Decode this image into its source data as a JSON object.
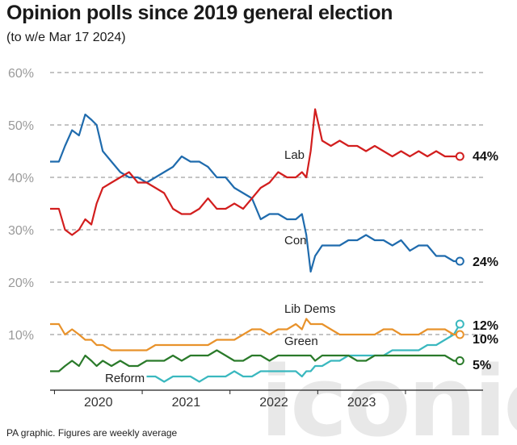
{
  "header": {
    "title": "Opinion polls since 2019 general election",
    "subtitle": "(to w/e Mar 17 2024)"
  },
  "footnote": "PA graphic. Figures are weekly average",
  "watermark": "iconic",
  "chart_data": {
    "type": "line",
    "title": "Opinion polls since 2019 general election",
    "subtitle": "(to w/e Mar 17 2024)",
    "ylim": [
      0,
      60
    ],
    "yticks": [
      10,
      20,
      30,
      40,
      50,
      60
    ],
    "ytick_labels": [
      "10%",
      "20%",
      "30%",
      "40%",
      "50%",
      "60%"
    ],
    "x_range": [
      2019.45,
      2024.2
    ],
    "xticks": [
      2020,
      2021,
      2022,
      2023
    ],
    "xtick_labels": [
      "2020",
      "2021",
      "2022",
      "2023"
    ],
    "grid": true,
    "series": [
      {
        "name": "Lab",
        "color": "#d21e1e",
        "end_label": "44%",
        "x": [
          2019.45,
          2019.55,
          2019.62,
          2019.7,
          2019.78,
          2019.85,
          2019.92,
          2019.98,
          2020.05,
          2020.15,
          2020.25,
          2020.35,
          2020.45,
          2020.55,
          2020.65,
          2020.75,
          2020.85,
          2020.95,
          2021.05,
          2021.15,
          2021.25,
          2021.35,
          2021.45,
          2021.55,
          2021.65,
          2021.75,
          2021.85,
          2021.95,
          2022.05,
          2022.15,
          2022.25,
          2022.32,
          2022.37,
          2022.42,
          2022.47,
          2022.55,
          2022.65,
          2022.75,
          2022.85,
          2022.95,
          2023.05,
          2023.15,
          2023.25,
          2023.35,
          2023.45,
          2023.55,
          2023.65,
          2023.75,
          2023.85,
          2023.95,
          2024.05,
          2024.12
        ],
        "values": [
          34,
          34,
          30,
          29,
          30,
          32,
          31,
          35,
          38,
          39,
          40,
          41,
          39,
          39,
          38,
          37,
          34,
          33,
          33,
          34,
          36,
          34,
          34,
          35,
          34,
          36,
          38,
          39,
          41,
          40,
          40,
          41,
          40,
          45,
          53,
          47,
          46,
          47,
          46,
          46,
          45,
          46,
          45,
          44,
          45,
          44,
          45,
          44,
          45,
          44,
          44,
          44
        ]
      },
      {
        "name": "Con",
        "color": "#1f6bad",
        "end_label": "24%",
        "x": [
          2019.45,
          2019.55,
          2019.62,
          2019.7,
          2019.78,
          2019.85,
          2019.92,
          2019.98,
          2020.05,
          2020.15,
          2020.25,
          2020.35,
          2020.45,
          2020.55,
          2020.65,
          2020.75,
          2020.85,
          2020.95,
          2021.05,
          2021.15,
          2021.25,
          2021.35,
          2021.45,
          2021.55,
          2021.65,
          2021.75,
          2021.85,
          2021.95,
          2022.05,
          2022.15,
          2022.25,
          2022.32,
          2022.37,
          2022.42,
          2022.47,
          2022.55,
          2022.65,
          2022.75,
          2022.85,
          2022.95,
          2023.05,
          2023.15,
          2023.25,
          2023.35,
          2023.45,
          2023.55,
          2023.65,
          2023.75,
          2023.85,
          2023.95,
          2024.05,
          2024.12
        ],
        "values": [
          43,
          43,
          46,
          49,
          48,
          52,
          51,
          50,
          45,
          43,
          41,
          40,
          40,
          39,
          40,
          41,
          42,
          44,
          43,
          43,
          42,
          40,
          40,
          38,
          37,
          36,
          32,
          33,
          33,
          32,
          32,
          33,
          29,
          22,
          25,
          27,
          27,
          27,
          28,
          28,
          29,
          28,
          28,
          27,
          28,
          26,
          27,
          27,
          25,
          25,
          24,
          24
        ]
      },
      {
        "name": "Lib Dems",
        "color": "#e8922b",
        "end_label": "10%",
        "x": [
          2019.45,
          2019.55,
          2019.62,
          2019.7,
          2019.78,
          2019.85,
          2019.92,
          2019.98,
          2020.05,
          2020.15,
          2020.25,
          2020.35,
          2020.45,
          2020.55,
          2020.65,
          2020.75,
          2020.85,
          2020.95,
          2021.05,
          2021.15,
          2021.25,
          2021.35,
          2021.45,
          2021.55,
          2021.65,
          2021.75,
          2021.85,
          2021.95,
          2022.05,
          2022.15,
          2022.25,
          2022.32,
          2022.37,
          2022.42,
          2022.47,
          2022.55,
          2022.65,
          2022.75,
          2022.85,
          2022.95,
          2023.05,
          2023.15,
          2023.25,
          2023.35,
          2023.45,
          2023.55,
          2023.65,
          2023.75,
          2023.85,
          2023.95,
          2024.05,
          2024.12
        ],
        "values": [
          12,
          12,
          10,
          11,
          10,
          9,
          9,
          8,
          8,
          7,
          7,
          7,
          7,
          7,
          8,
          8,
          8,
          8,
          8,
          8,
          8,
          9,
          9,
          9,
          10,
          11,
          11,
          10,
          11,
          11,
          12,
          11,
          13,
          12,
          12,
          12,
          11,
          10,
          10,
          10,
          10,
          10,
          11,
          11,
          10,
          10,
          10,
          11,
          11,
          11,
          10,
          10
        ]
      },
      {
        "name": "Green",
        "color": "#2a7a2a",
        "end_label": "5%",
        "x": [
          2019.45,
          2019.55,
          2019.62,
          2019.7,
          2019.78,
          2019.85,
          2019.92,
          2019.98,
          2020.05,
          2020.15,
          2020.25,
          2020.35,
          2020.45,
          2020.55,
          2020.65,
          2020.75,
          2020.85,
          2020.95,
          2021.05,
          2021.15,
          2021.25,
          2021.35,
          2021.45,
          2021.55,
          2021.65,
          2021.75,
          2021.85,
          2021.95,
          2022.05,
          2022.15,
          2022.25,
          2022.32,
          2022.37,
          2022.42,
          2022.47,
          2022.55,
          2022.65,
          2022.75,
          2022.85,
          2022.95,
          2023.05,
          2023.15,
          2023.25,
          2023.35,
          2023.45,
          2023.55,
          2023.65,
          2023.75,
          2023.85,
          2023.95,
          2024.05,
          2024.12
        ],
        "values": [
          3,
          3,
          4,
          5,
          4,
          6,
          5,
          4,
          5,
          4,
          5,
          4,
          4,
          5,
          5,
          5,
          6,
          5,
          6,
          6,
          6,
          7,
          6,
          5,
          5,
          6,
          6,
          5,
          6,
          6,
          6,
          6,
          6,
          6,
          5,
          6,
          6,
          6,
          6,
          5,
          5,
          6,
          6,
          6,
          6,
          6,
          6,
          6,
          6,
          6,
          5,
          5
        ]
      },
      {
        "name": "Reform",
        "color": "#3ab8bf",
        "end_label": "12%",
        "x": [
          2020.55,
          2020.65,
          2020.75,
          2020.85,
          2020.95,
          2021.05,
          2021.15,
          2021.25,
          2021.35,
          2021.45,
          2021.55,
          2021.65,
          2021.75,
          2021.85,
          2021.95,
          2022.05,
          2022.15,
          2022.25,
          2022.32,
          2022.37,
          2022.42,
          2022.47,
          2022.55,
          2022.65,
          2022.75,
          2022.85,
          2022.95,
          2023.05,
          2023.15,
          2023.25,
          2023.35,
          2023.45,
          2023.55,
          2023.65,
          2023.75,
          2023.85,
          2023.95,
          2024.05,
          2024.12
        ],
        "values": [
          2,
          2,
          1,
          2,
          2,
          2,
          1,
          2,
          2,
          2,
          3,
          2,
          2,
          3,
          3,
          3,
          3,
          3,
          2,
          3,
          3,
          4,
          4,
          5,
          5,
          6,
          6,
          6,
          6,
          6,
          7,
          7,
          7,
          7,
          8,
          8,
          9,
          10,
          12
        ]
      }
    ],
    "inline_labels": [
      {
        "text": "Lab",
        "series": "Lab"
      },
      {
        "text": "Con",
        "series": "Con"
      },
      {
        "text": "Lib Dems",
        "series": "Lib Dems"
      },
      {
        "text": "Green",
        "series": "Green"
      },
      {
        "text": "Reform",
        "series": "Reform"
      }
    ]
  }
}
